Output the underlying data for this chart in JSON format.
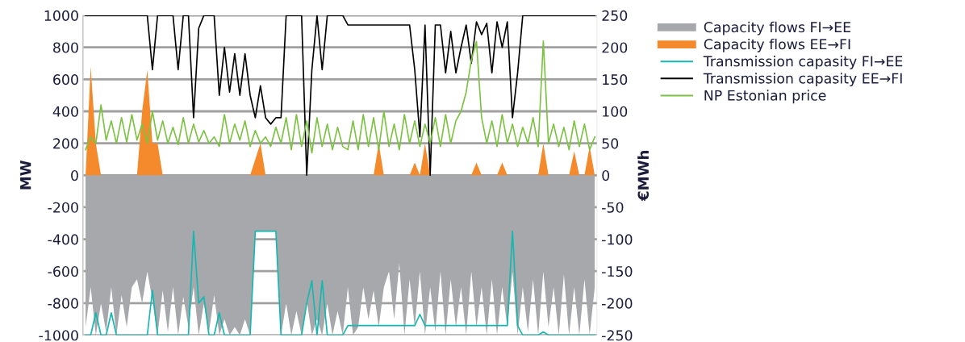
{
  "chart_data": {
    "type": "line",
    "ylabel": "MW",
    "y2label": "€MWh",
    "categories": [
      null,
      null,
      null,
      null,
      null,
      null,
      null,
      null,
      null,
      null,
      null,
      null,
      null,
      null,
      null,
      null,
      null,
      null,
      null,
      null,
      null,
      null,
      null,
      null,
      null,
      null,
      null,
      null,
      null,
      null,
      null,
      null,
      null,
      null,
      null,
      null,
      null,
      null,
      null,
      null,
      null,
      null,
      null,
      null,
      null,
      null,
      null,
      null,
      null,
      null,
      null,
      null,
      null,
      null,
      null,
      null,
      null,
      null,
      null,
      null,
      null,
      null,
      null,
      null,
      null,
      null,
      null,
      null,
      null,
      null,
      null,
      null,
      null,
      null,
      null,
      null,
      null,
      null,
      null,
      null,
      null,
      null,
      null,
      null,
      null,
      null,
      null,
      null,
      null,
      null,
      null,
      null,
      null,
      null,
      null,
      null,
      null,
      null,
      null,
      null
    ],
    "ylim": [
      -1000,
      1000
    ],
    "yticks": [
      -1000,
      -800,
      -600,
      -400,
      -200,
      0,
      200,
      400,
      600,
      800,
      1000
    ],
    "y2lim": [
      -250,
      250
    ],
    "y2ticks": [
      -250,
      -200,
      -150,
      -100,
      -50,
      0,
      50,
      100,
      150,
      200,
      250
    ],
    "grid": "y",
    "legend": "right",
    "series": [
      {
        "name": "Capacity flows FI→EE",
        "type": "area",
        "color": "#a6a8ab",
        "values": [
          -950,
          -700,
          -1000,
          -800,
          -980,
          -700,
          -1000,
          -750,
          -950,
          -700,
          -650,
          -800,
          -600,
          -780,
          -1000,
          -720,
          -980,
          -700,
          -1000,
          -760,
          -950,
          -700,
          -1000,
          -800,
          -980,
          -750,
          -1000,
          -900,
          -1000,
          -950,
          -1000,
          -900,
          -1000,
          -350,
          -350,
          -350,
          -350,
          -350,
          -1000,
          -800,
          -1000,
          -850,
          -1000,
          -780,
          -1000,
          -900,
          -1000,
          -800,
          -1000,
          -850,
          -1000,
          -700,
          -1000,
          -950,
          -700,
          -900,
          -720,
          -950,
          -700,
          -600,
          -900,
          -550,
          -1000,
          -650,
          -950,
          -600,
          -1000,
          -700,
          -980,
          -600,
          -1000,
          -650,
          -950,
          -700,
          -1000,
          -600,
          -950,
          -700,
          -1000,
          -650,
          -1000,
          -700,
          -950,
          -600,
          -1000,
          -700,
          -980,
          -650,
          -1000,
          -600,
          -950,
          -700,
          -1000,
          -620,
          -1000,
          -700,
          -1000,
          -650,
          -1000,
          -700
        ]
      },
      {
        "name": "Capacity flows EE→FI",
        "type": "area",
        "color": "#f58a2c",
        "values": [
          0,
          680,
          200,
          0,
          0,
          0,
          0,
          0,
          0,
          0,
          0,
          400,
          660,
          200,
          200,
          0,
          0,
          0,
          0,
          0,
          0,
          0,
          0,
          0,
          0,
          0,
          0,
          0,
          0,
          0,
          0,
          0,
          0,
          100,
          200,
          0,
          0,
          0,
          0,
          0,
          0,
          0,
          0,
          0,
          0,
          0,
          0,
          0,
          0,
          0,
          0,
          0,
          0,
          0,
          0,
          0,
          0,
          200,
          0,
          0,
          0,
          0,
          0,
          0,
          80,
          0,
          200,
          0,
          0,
          0,
          0,
          0,
          0,
          0,
          0,
          0,
          80,
          0,
          0,
          0,
          0,
          80,
          0,
          0,
          0,
          0,
          0,
          0,
          0,
          200,
          0,
          0,
          0,
          0,
          0,
          150,
          0,
          0,
          180,
          0
        ]
      },
      {
        "name": "Transmission capasity FI→EE",
        "color": "#14b8b0",
        "values": [
          -1000,
          -1000,
          -860,
          -1000,
          -1000,
          -860,
          -1000,
          -1000,
          -1000,
          -1000,
          -1000,
          -1000,
          -1000,
          -720,
          -1000,
          -1000,
          -1000,
          -1000,
          -1000,
          -1000,
          -1000,
          -350,
          -800,
          -760,
          -1000,
          -1000,
          -860,
          -1000,
          -1000,
          -1000,
          -1000,
          -1000,
          -1000,
          -350,
          -350,
          -350,
          -350,
          -350,
          -1000,
          -1000,
          -1000,
          -1000,
          -1000,
          -800,
          -660,
          -1000,
          -660,
          -1000,
          -1000,
          -1000,
          -1000,
          -940,
          -940,
          -940,
          -940,
          -940,
          -940,
          -940,
          -940,
          -940,
          -940,
          -940,
          -940,
          -940,
          -940,
          -870,
          -940,
          -940,
          -940,
          -940,
          -940,
          -940,
          -940,
          -940,
          -940,
          -940,
          -940,
          -940,
          -940,
          -940,
          -940,
          -940,
          -940,
          -350,
          -940,
          -1000,
          -1000,
          -1000,
          -1000,
          -980,
          -1000,
          -1000,
          -1000,
          -1000,
          -1000,
          -1000,
          -1000,
          -1000,
          -1000,
          -1000
        ]
      },
      {
        "name": "Transmission capasity EE→FI",
        "color": "#000000",
        "values": [
          1000,
          1000,
          1000,
          1000,
          1000,
          1000,
          1000,
          1000,
          1000,
          1000,
          1000,
          1000,
          1000,
          660,
          1000,
          1000,
          1000,
          1000,
          660,
          1000,
          1000,
          360,
          920,
          1000,
          1000,
          1000,
          500,
          800,
          520,
          760,
          500,
          760,
          500,
          360,
          560,
          360,
          320,
          360,
          360,
          1000,
          1000,
          1000,
          1000,
          0,
          660,
          1000,
          660,
          1000,
          1000,
          1000,
          1000,
          940,
          940,
          940,
          940,
          940,
          940,
          940,
          940,
          940,
          940,
          940,
          940,
          940,
          660,
          240,
          940,
          0,
          940,
          940,
          640,
          900,
          640,
          800,
          940,
          700,
          960,
          880,
          950,
          640,
          960,
          800,
          960,
          360,
          640,
          1000,
          1000,
          1000,
          1000,
          1000,
          1000,
          1000,
          1000,
          1000,
          1000,
          1000,
          1000,
          1000,
          1000,
          1000
        ]
      },
      {
        "name": "NP Estonian price",
        "axis": "y2",
        "color": "#7dc242",
        "values": [
          40,
          60,
          50,
          110,
          55,
          85,
          50,
          90,
          52,
          95,
          55,
          80,
          50,
          100,
          55,
          85,
          50,
          75,
          48,
          90,
          50,
          80,
          52,
          70,
          50,
          60,
          45,
          95,
          50,
          80,
          55,
          85,
          45,
          70,
          50,
          60,
          45,
          75,
          50,
          90,
          40,
          95,
          45,
          85,
          35,
          90,
          45,
          80,
          40,
          75,
          45,
          40,
          85,
          40,
          95,
          45,
          90,
          40,
          100,
          45,
          80,
          40,
          95,
          50,
          85,
          45,
          80,
          50,
          90,
          45,
          95,
          50,
          85,
          100,
          130,
          180,
          209,
          90,
          50,
          85,
          45,
          95,
          50,
          80,
          45,
          75,
          50,
          90,
          45,
          210,
          50,
          80,
          45,
          75,
          40,
          85,
          45,
          80,
          40,
          60
        ]
      }
    ]
  }
}
